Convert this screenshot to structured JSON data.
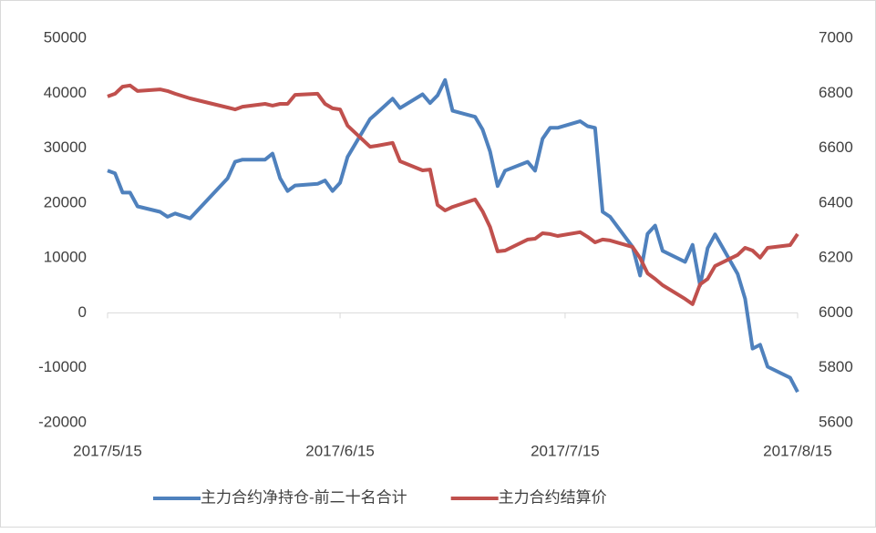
{
  "chart_data": {
    "type": "line",
    "xlim": [
      "2017/5/15",
      "2017/8/15"
    ],
    "xticks": [
      "2017/5/15",
      "2017/6/15",
      "2017/7/15",
      "2017/8/15"
    ],
    "ylim": [
      -20000,
      50000
    ],
    "yticks": [
      -20000,
      -10000,
      0,
      10000,
      20000,
      30000,
      40000,
      50000
    ],
    "y2lim": [
      5600,
      7000
    ],
    "y2ticks": [
      5600,
      5800,
      6000,
      6200,
      6400,
      6600,
      6800,
      7000
    ],
    "legend": "bottom",
    "series": [
      {
        "name": "主力合约净持仓-前二十名合计",
        "color": "#4f81bd",
        "x": [
          "2017/5/15",
          "2017/5/16",
          "2017/5/17",
          "2017/5/18",
          "2017/5/19",
          "2017/5/22",
          "2017/5/23",
          "2017/5/24",
          "2017/5/26",
          "2017/5/31",
          "2017/6/1",
          "2017/6/2",
          "2017/6/5",
          "2017/6/6",
          "2017/6/7",
          "2017/6/8",
          "2017/6/9",
          "2017/6/12",
          "2017/6/13",
          "2017/6/14",
          "2017/6/15",
          "2017/6/16",
          "2017/6/19",
          "2017/6/20",
          "2017/6/22",
          "2017/6/23",
          "2017/6/26",
          "2017/6/27",
          "2017/6/28",
          "2017/6/29",
          "2017/6/30",
          "2017/7/3",
          "2017/7/4",
          "2017/7/5",
          "2017/7/6",
          "2017/7/7",
          "2017/7/10",
          "2017/7/11",
          "2017/7/12",
          "2017/7/13",
          "2017/7/14",
          "2017/7/17",
          "2017/7/18",
          "2017/7/19",
          "2017/7/20",
          "2017/7/21",
          "2017/7/24",
          "2017/7/25",
          "2017/7/26",
          "2017/7/27",
          "2017/7/28",
          "2017/7/31",
          "2017/8/1",
          "2017/8/2",
          "2017/8/3",
          "2017/8/4",
          "2017/8/7",
          "2017/8/8",
          "2017/8/9",
          "2017/8/10",
          "2017/8/11",
          "2017/8/14",
          "2017/8/15"
        ],
        "values": [
          25900,
          25400,
          21900,
          21900,
          19400,
          18400,
          17500,
          18100,
          17200,
          24500,
          27500,
          27900,
          27900,
          29000,
          24500,
          22200,
          23200,
          23500,
          24100,
          22200,
          23700,
          28400,
          35300,
          36500,
          39000,
          37300,
          39800,
          38200,
          39600,
          42400,
          36800,
          35700,
          33400,
          29400,
          23100,
          25900,
          27500,
          25900,
          31700,
          33700,
          33700,
          34900,
          34000,
          33700,
          18400,
          17500,
          12000,
          6800,
          14400,
          15900,
          11300,
          9300,
          12400,
          5000,
          11800,
          14300,
          7100,
          2600,
          -6500,
          -5800,
          -9800,
          -11800,
          -14400
        ]
      },
      {
        "name": "主力合约结算价",
        "color": "#c0504d",
        "axis": "y2",
        "x": [
          "2017/5/15",
          "2017/5/16",
          "2017/5/17",
          "2017/5/18",
          "2017/5/19",
          "2017/5/22",
          "2017/5/23",
          "2017/5/24",
          "2017/5/26",
          "2017/5/31",
          "2017/6/1",
          "2017/6/2",
          "2017/6/5",
          "2017/6/6",
          "2017/6/7",
          "2017/6/8",
          "2017/6/9",
          "2017/6/12",
          "2017/6/13",
          "2017/6/14",
          "2017/6/15",
          "2017/6/16",
          "2017/6/19",
          "2017/6/20",
          "2017/6/22",
          "2017/6/23",
          "2017/6/26",
          "2017/6/27",
          "2017/6/28",
          "2017/6/29",
          "2017/6/30",
          "2017/7/3",
          "2017/7/4",
          "2017/7/5",
          "2017/7/6",
          "2017/7/7",
          "2017/7/10",
          "2017/7/11",
          "2017/7/12",
          "2017/7/13",
          "2017/7/14",
          "2017/7/17",
          "2017/7/18",
          "2017/7/19",
          "2017/7/20",
          "2017/7/21",
          "2017/7/24",
          "2017/7/25",
          "2017/7/26",
          "2017/7/27",
          "2017/7/28",
          "2017/7/31",
          "2017/8/1",
          "2017/8/2",
          "2017/8/3",
          "2017/8/4",
          "2017/8/7",
          "2017/8/8",
          "2017/8/9",
          "2017/8/10",
          "2017/8/11",
          "2017/8/14",
          "2017/8/15"
        ],
        "values": [
          6788,
          6798,
          6824,
          6828,
          6808,
          6814,
          6808,
          6798,
          6781,
          6748,
          6741,
          6751,
          6761,
          6755,
          6761,
          6761,
          6794,
          6798,
          6761,
          6745,
          6741,
          6682,
          6605,
          6609,
          6619,
          6552,
          6519,
          6522,
          6393,
          6373,
          6386,
          6413,
          6370,
          6313,
          6224,
          6227,
          6267,
          6270,
          6290,
          6287,
          6280,
          6294,
          6277,
          6257,
          6267,
          6264,
          6240,
          6200,
          6144,
          6124,
          6101,
          6051,
          6032,
          6104,
          6124,
          6171,
          6211,
          6237,
          6227,
          6201,
          6237,
          6247,
          6287
        ]
      }
    ]
  }
}
